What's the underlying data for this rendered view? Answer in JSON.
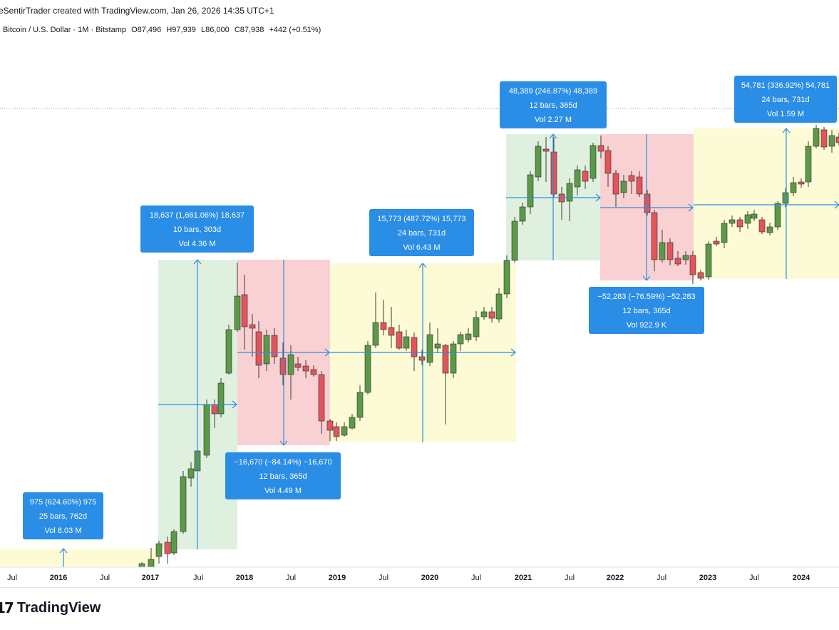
{
  "header": {
    "author_line": "eSentirTrader created with TradingView.com, Jan 26, 2026 14:35 UTC+1"
  },
  "legend": {
    "symbol": "Bitcoin / U.S. Dollar · 1M · Bitstamp",
    "open": "O87,496",
    "high": "H97,939",
    "low": "L86,000",
    "close": "C87,938",
    "change": "+442 (+0.51%)"
  },
  "colors": {
    "up": "#5b9a47",
    "down": "#e2555c",
    "callout_bg": "#2a8de6",
    "up_zone": "#dff0df",
    "down_zone": "#f9d1d3",
    "neutral_zone": "#fdfbd5",
    "measure_line": "#2a8de6"
  },
  "x_axis": {
    "ticks": [
      {
        "label": "Jul",
        "year": false
      },
      {
        "label": "2016",
        "year": true
      },
      {
        "label": "Jul",
        "year": false
      },
      {
        "label": "2017",
        "year": true
      },
      {
        "label": "Jul",
        "year": false
      },
      {
        "label": "2018",
        "year": true
      },
      {
        "label": "Jul",
        "year": false
      },
      {
        "label": "2019",
        "year": true
      },
      {
        "label": "Jul",
        "year": false
      },
      {
        "label": "2020",
        "year": true
      },
      {
        "label": "Jul",
        "year": false
      },
      {
        "label": "2021",
        "year": true
      },
      {
        "label": "Jul",
        "year": false
      },
      {
        "label": "2022",
        "year": true
      },
      {
        "label": "Jul",
        "year": false
      },
      {
        "label": "2023",
        "year": true
      },
      {
        "label": "Jul",
        "year": false
      },
      {
        "label": "2024",
        "year": true
      }
    ]
  },
  "measurements": [
    {
      "line1": "975 (624.60%) 975",
      "line2": "25 bars, 762d",
      "line3": "Vol 8.03 M",
      "zone": "neutral"
    },
    {
      "line1": "18,637 (1,661.06%) 18,637",
      "line2": "10 bars, 303d",
      "line3": "Vol 4.36 M",
      "zone": "up"
    },
    {
      "line1": "−16,670 (−84.14%) −16,670",
      "line2": "12 bars, 365d",
      "line3": "Vol 4.49 M",
      "zone": "down"
    },
    {
      "line1": "15,773 (487.72%) 15,773",
      "line2": "24 bars, 731d",
      "line3": "Vol 6.43 M",
      "zone": "neutral"
    },
    {
      "line1": "48,389 (246.87%) 48,389",
      "line2": "12 bars, 365d",
      "line3": "Vol 2.27 M",
      "zone": "up"
    },
    {
      "line1": "−52,283 (−76.59%) −52,283",
      "line2": "12 bars, 365d",
      "line3": "Vol 922.9 K",
      "zone": "down"
    },
    {
      "line1": "54,781 (336.92%) 54,781",
      "line2": "24 bars, 731d",
      "line3": "Vol 1.59 M",
      "zone": "neutral"
    }
  ],
  "branding": {
    "logo_mark": "17",
    "logo_text": "TradingView"
  }
}
